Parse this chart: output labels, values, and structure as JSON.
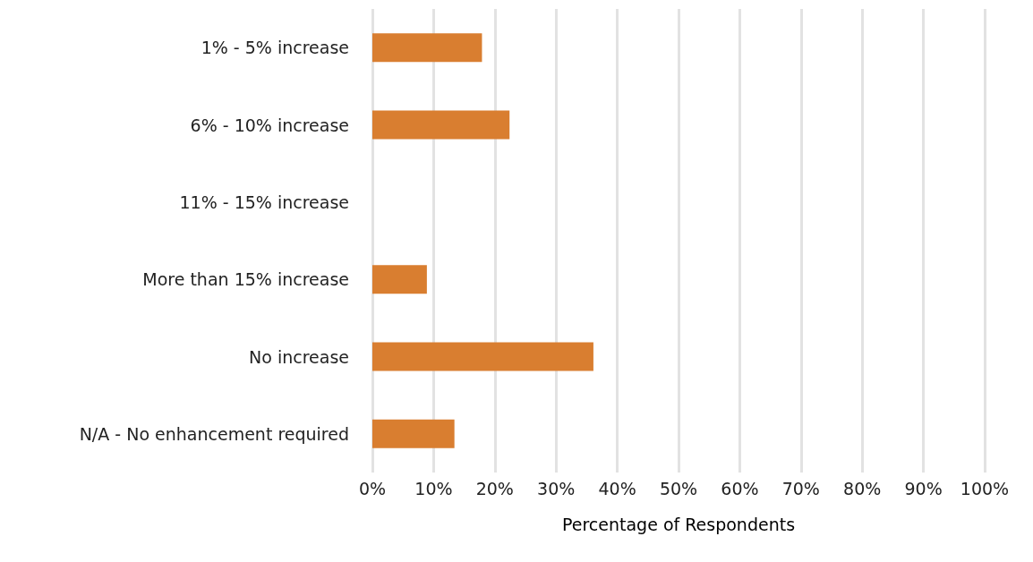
{
  "chart_data": {
    "type": "bar",
    "orientation": "horizontal",
    "xlabel": "Percentage of Respondents",
    "categories": [
      "1% - 5% increase",
      "6% - 10% increase",
      "11% - 15% increase",
      "More than 15% increase",
      "No increase",
      "N/A - No enhancement required"
    ],
    "values": [
      17.9,
      22.4,
      0,
      8.9,
      36.1,
      13.4
    ],
    "color": "#d97e30",
    "xlim": [
      0,
      100
    ],
    "xticks": [
      {
        "value": 0,
        "label": "0%"
      },
      {
        "value": 10,
        "label": "10%"
      },
      {
        "value": 20,
        "label": "20%"
      },
      {
        "value": 30,
        "label": "30%"
      },
      {
        "value": 40,
        "label": "40%"
      },
      {
        "value": 50,
        "label": "50%"
      },
      {
        "value": 60,
        "label": "60%"
      },
      {
        "value": 70,
        "label": "70%"
      },
      {
        "value": 80,
        "label": "80%"
      },
      {
        "value": 90,
        "label": "90%"
      },
      {
        "value": 100,
        "label": "100%"
      }
    ],
    "grid": "x"
  }
}
